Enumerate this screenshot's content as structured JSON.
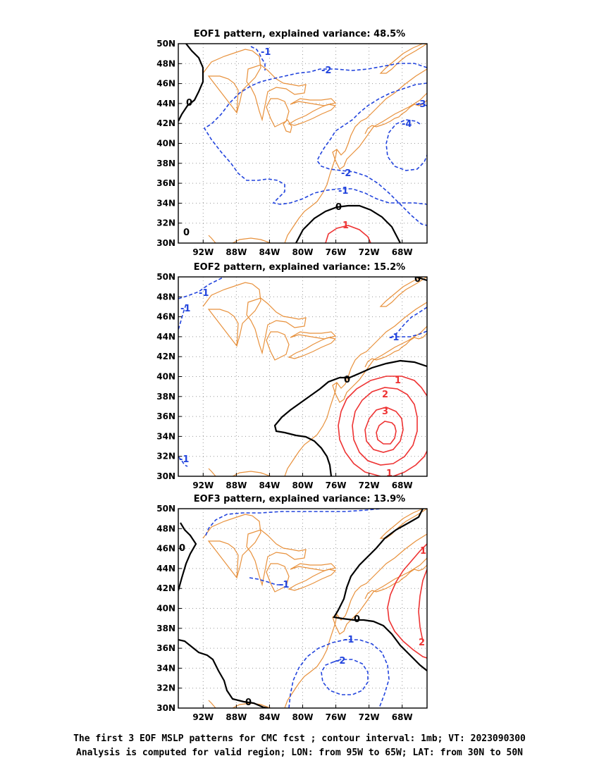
{
  "panels": [
    {
      "title": "EOF1 pattern, explained variance: 48.5%",
      "contour_labels": [
        "-1",
        "-2",
        "-3",
        "-4",
        "-2",
        "-1",
        "0",
        "1",
        "0",
        "0"
      ]
    },
    {
      "title": "EOF2 pattern, explained variance: 15.2%",
      "contour_labels": [
        "-1",
        "-1",
        "-1",
        "0",
        "0",
        "1",
        "2",
        "3",
        "-1",
        "1"
      ]
    },
    {
      "title": "EOF3 pattern, explained variance: 13.9%",
      "contour_labels": [
        "0",
        "-1",
        "0",
        "-1",
        "-2",
        "0",
        "1",
        "2"
      ]
    }
  ],
  "axes": {
    "lat_ticks": [
      "50N",
      "48N",
      "46N",
      "44N",
      "42N",
      "40N",
      "38N",
      "36N",
      "34N",
      "32N",
      "30N"
    ],
    "lon_ticks": [
      "92W",
      "88W",
      "84W",
      "80W",
      "76W",
      "72W",
      "68W"
    ],
    "lon_range": [
      -95,
      -65
    ],
    "lat_range": [
      30,
      50
    ],
    "grid": "dotted"
  },
  "colors": {
    "coast": "#e8913c",
    "negative": "#2244dd",
    "positive": "#ee3333",
    "zero": "#000000",
    "grid": "#999999"
  },
  "caption": {
    "line1": "The first 3 EOF MSLP patterns for CMC fcst ; contour interval: 1mb; VT: 2023090300",
    "line2": "Analysis is computed for valid region; LON: from 95W to 65W; LAT: from 30N to 50N"
  }
}
